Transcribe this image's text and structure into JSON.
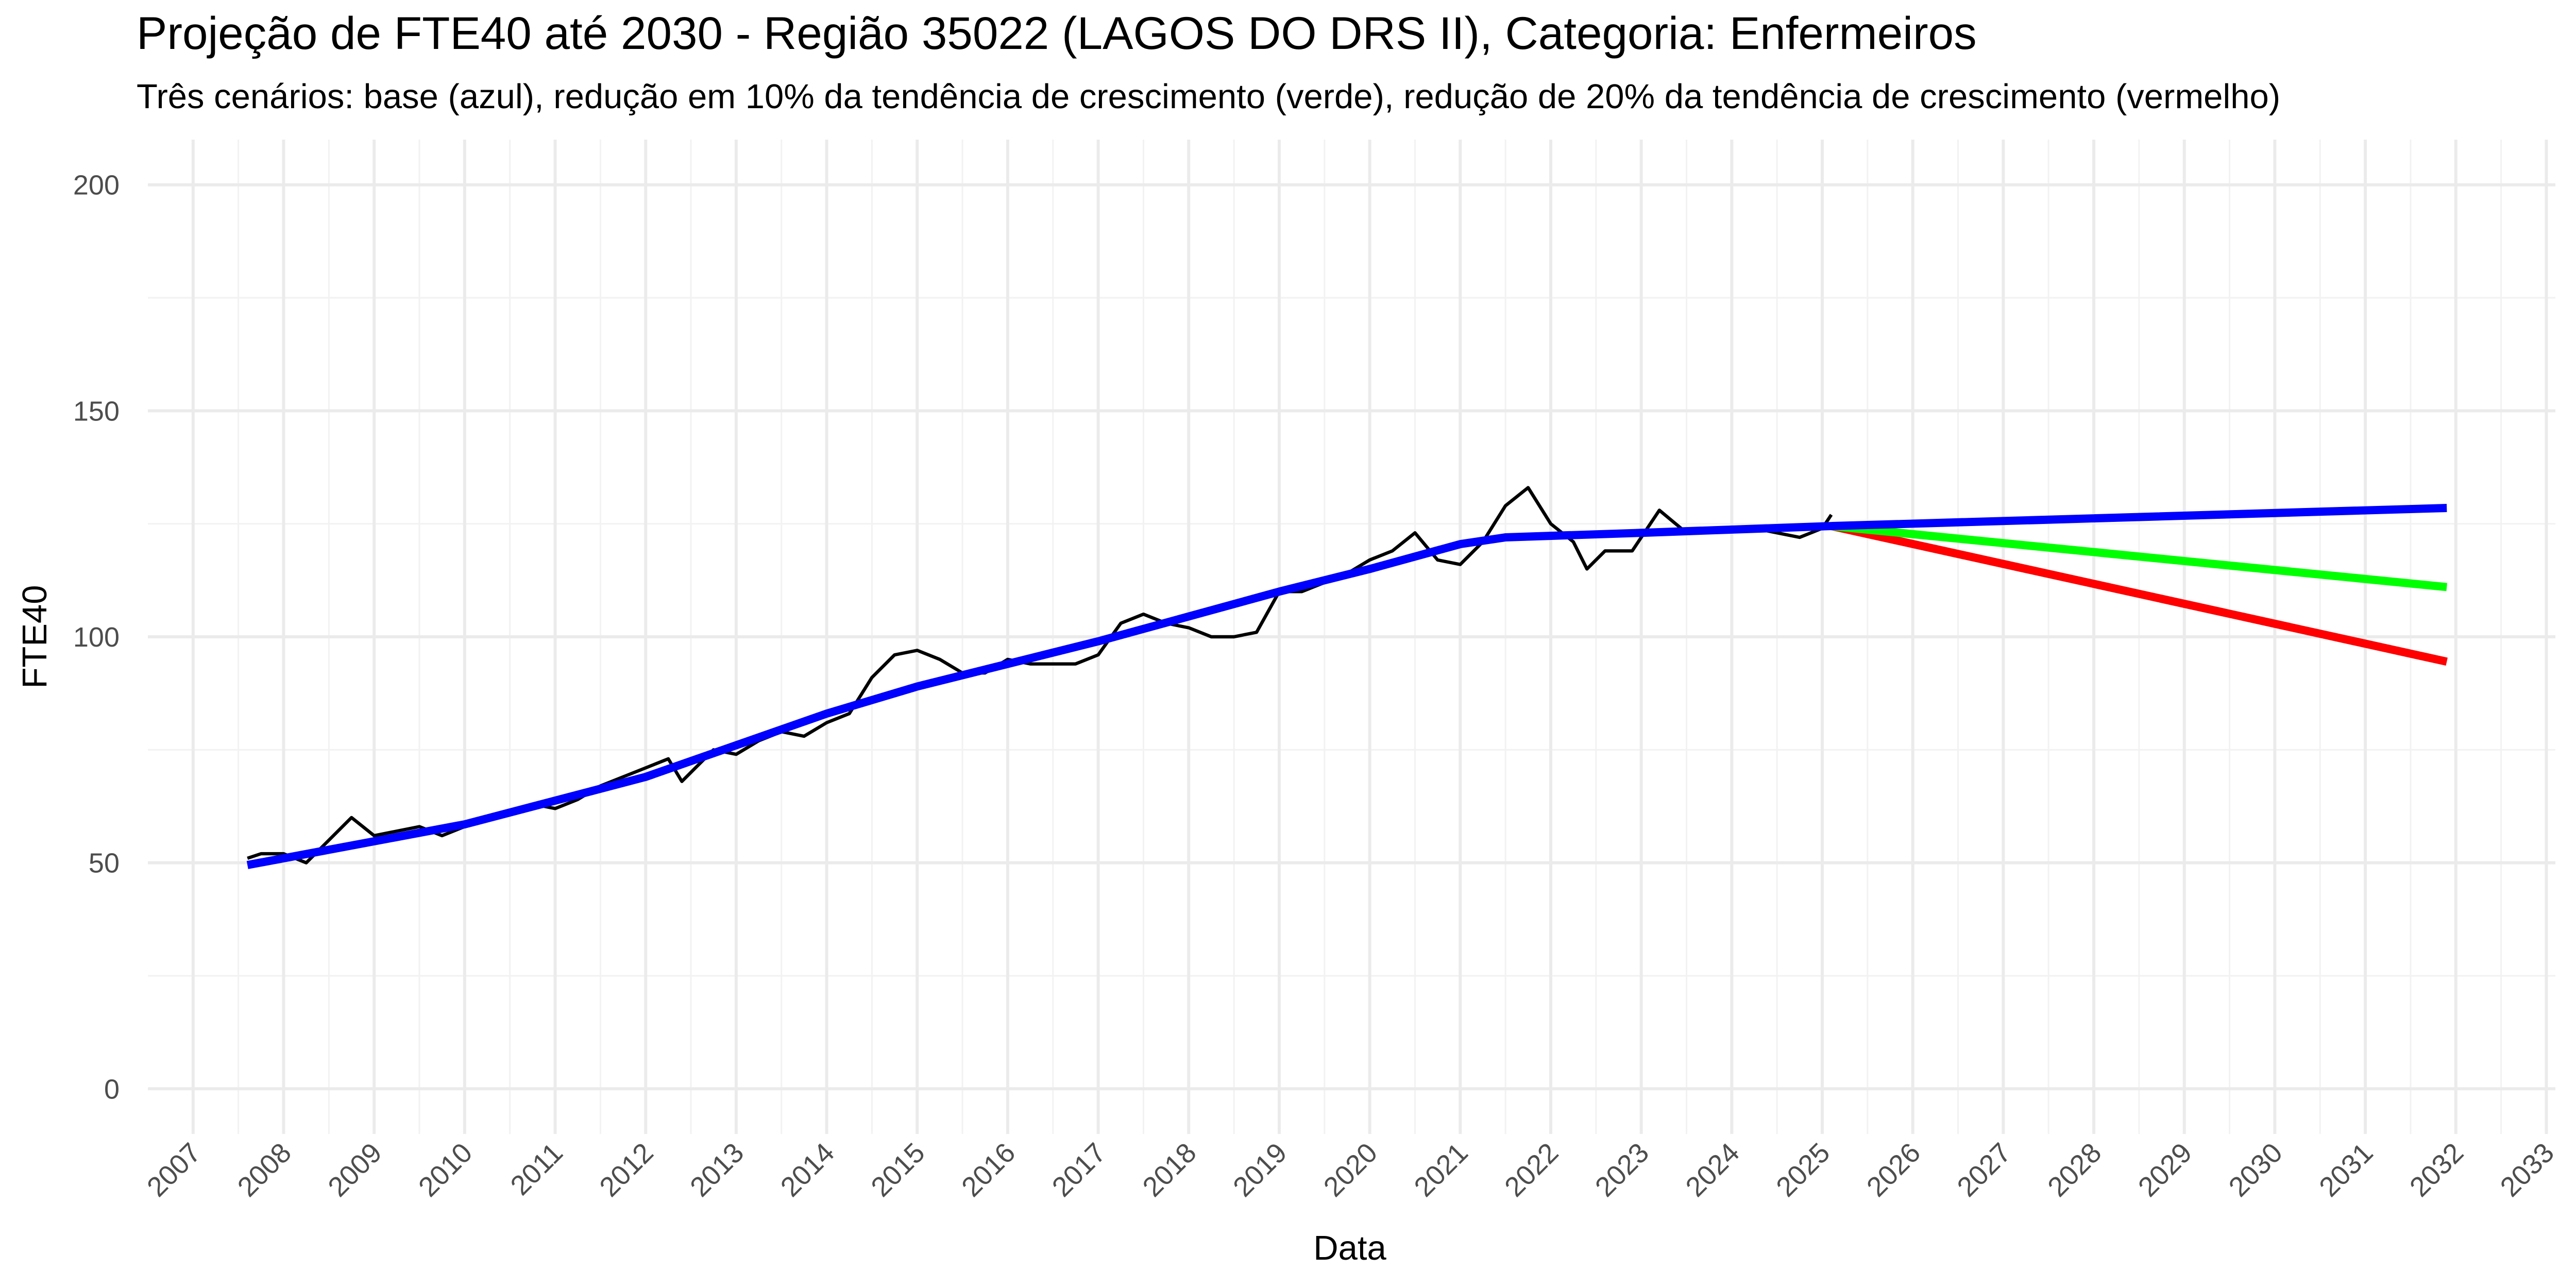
{
  "chart_data": {
    "type": "line",
    "title": "Projeção de FTE40 até 2030 - Região 35022 (LAGOS DO DRS II), Categoria: Enfermeiros",
    "subtitle": "Três cenários: base (azul), redução em 10% da tendência de crescimento (verde), redução de 20% da tendência de crescimento (vermelho)",
    "x_label": "Data",
    "y_label": "FTE40",
    "xlim": [
      2006.5,
      2033.1
    ],
    "xticks": [
      2007,
      2008,
      2009,
      2010,
      2011,
      2012,
      2013,
      2014,
      2015,
      2016,
      2017,
      2018,
      2019,
      2020,
      2021,
      2022,
      2023,
      2024,
      2025,
      2026,
      2027,
      2028,
      2029,
      2030,
      2031,
      2032,
      2033
    ],
    "ylim": [
      -10,
      210
    ],
    "yticks": [
      0,
      50,
      100,
      150,
      200
    ],
    "grid": true,
    "series": [
      {
        "color": "#000000",
        "width": 2,
        "x": [
          2007.6,
          2007.75,
          2008.0,
          2008.25,
          2008.5,
          2008.75,
          2009.0,
          2009.25,
          2009.5,
          2009.75,
          2010.0,
          2010.25,
          2010.5,
          2010.75,
          2011.0,
          2011.25,
          2011.5,
          2011.75,
          2012.0,
          2012.25,
          2012.4,
          2012.75,
          2013.0,
          2013.25,
          2013.5,
          2013.75,
          2014.0,
          2014.25,
          2014.5,
          2014.75,
          2015.0,
          2015.25,
          2015.5,
          2015.75,
          2016.0,
          2016.25,
          2016.5,
          2016.75,
          2017.0,
          2017.25,
          2017.5,
          2017.75,
          2018.0,
          2018.25,
          2018.5,
          2018.75,
          2019.0,
          2019.25,
          2019.5,
          2019.75,
          2020.0,
          2020.25,
          2020.5,
          2020.75,
          2021.0,
          2021.25,
          2021.5,
          2021.75,
          2022.0,
          2022.25,
          2022.4,
          2022.6,
          2022.9,
          2023.2,
          2023.5,
          2023.75,
          2024.0,
          2024.25,
          2024.5,
          2024.75,
          2025.0,
          2025.1
        ],
        "values": [
          51,
          52,
          52,
          50,
          55,
          60,
          56,
          57,
          58,
          56,
          58,
          60,
          61,
          63,
          62,
          64,
          67,
          69,
          71,
          73,
          68,
          75,
          74,
          77,
          79,
          78,
          81,
          83,
          91,
          96,
          97,
          95,
          92,
          92,
          95,
          94,
          94,
          94,
          96,
          103,
          105,
          103,
          102,
          100,
          100,
          101,
          110,
          110,
          112,
          114,
          117,
          119,
          123,
          117,
          116,
          121,
          129,
          133,
          125,
          121,
          115,
          119,
          119,
          128,
          123,
          124,
          124,
          124,
          123,
          122,
          124,
          127
        ]
      },
      {
        "color": "#ff0000",
        "width": 5,
        "x": [
          2025.1,
          2031.9
        ],
        "values": [
          124.5,
          94.5
        ]
      },
      {
        "color": "#00ff00",
        "width": 5,
        "x": [
          2025.1,
          2031.9
        ],
        "values": [
          124.5,
          111
        ]
      },
      {
        "color": "#0000ff",
        "width": 5,
        "x": [
          2007.6,
          2010,
          2012,
          2014,
          2015,
          2017,
          2019,
          2020,
          2021,
          2021.5,
          2023,
          2025.1,
          2031.9
        ],
        "values": [
          49.5,
          58.5,
          69,
          83,
          89,
          99,
          110,
          115,
          120.5,
          122,
          123,
          124.5,
          128.5
        ]
      }
    ]
  }
}
